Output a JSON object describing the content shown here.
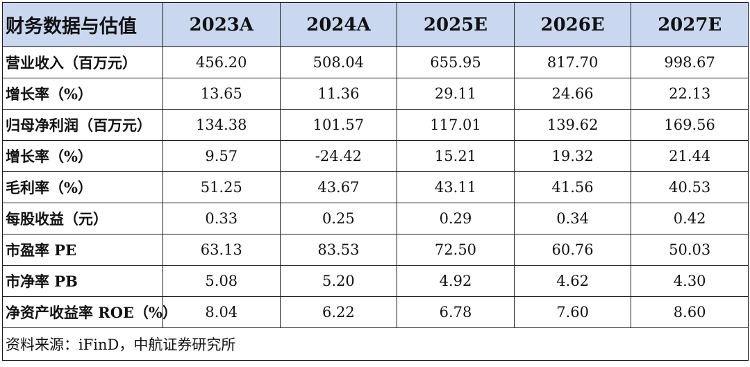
{
  "table": {
    "corner_label": "财务数据与估值",
    "years": [
      "2023A",
      "2024A",
      "2025E",
      "2026E",
      "2027E"
    ],
    "rows": [
      {
        "label": "营业收入（百万元）",
        "values": [
          "456.20",
          "508.04",
          "655.95",
          "817.70",
          "998.67"
        ]
      },
      {
        "label": "增长率（%）",
        "values": [
          "13.65",
          "11.36",
          "29.11",
          "24.66",
          "22.13"
        ]
      },
      {
        "label": "归母净利润（百万元）",
        "values": [
          "134.38",
          "101.57",
          "117.01",
          "139.62",
          "169.56"
        ]
      },
      {
        "label": "增长率（%）",
        "values": [
          "9.57",
          "-24.42",
          "15.21",
          "19.32",
          "21.44"
        ]
      },
      {
        "label": "毛利率（%）",
        "values": [
          "51.25",
          "43.67",
          "43.11",
          "41.56",
          "40.53"
        ]
      },
      {
        "label": "每股收益（元）",
        "values": [
          "0.33",
          "0.25",
          "0.29",
          "0.34",
          "0.42"
        ]
      },
      {
        "label": "市盈率 PE",
        "values": [
          "63.13",
          "83.53",
          "72.50",
          "60.76",
          "50.03"
        ]
      },
      {
        "label": "市净率 PB",
        "values": [
          "5.08",
          "5.20",
          "4.92",
          "4.62",
          "4.30"
        ]
      },
      {
        "label": "净资产收益率 ROE（%）",
        "values": [
          "8.04",
          "6.22",
          "6.78",
          "7.60",
          "8.60"
        ]
      }
    ],
    "source": "资料来源：iFinD，中航证券研究所"
  },
  "colors": {
    "header_bg": "#c9d8ef",
    "border": "#1a1a1a"
  }
}
